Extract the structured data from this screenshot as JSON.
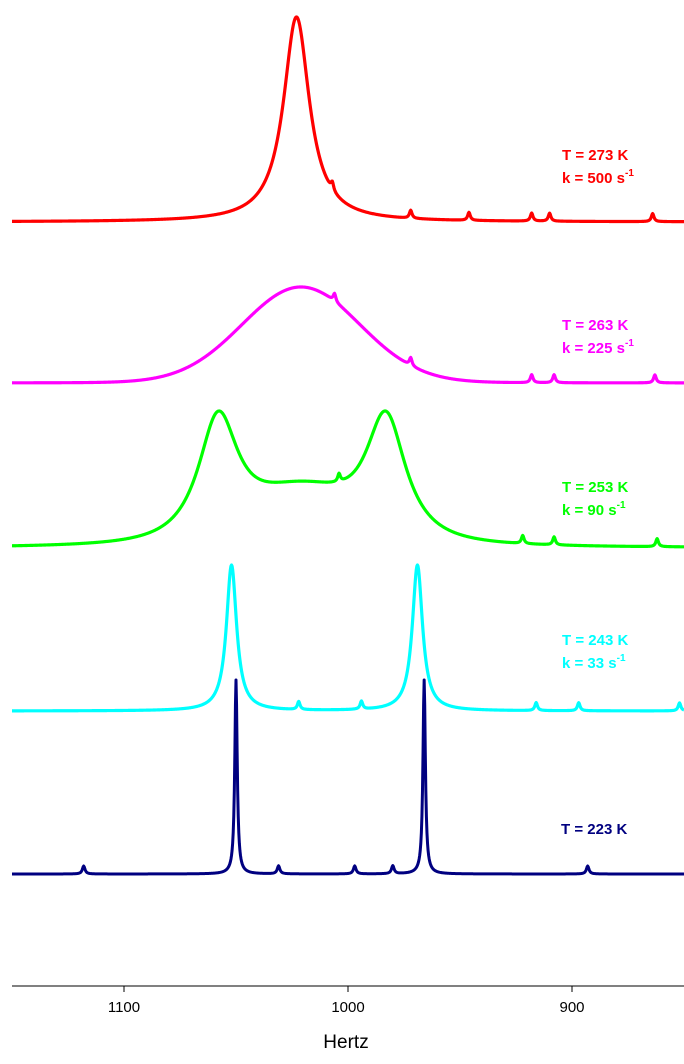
{
  "chart_data": {
    "type": "line",
    "title": "",
    "xlabel": "Hertz",
    "ylabel": "",
    "xlim": [
      1150,
      850
    ],
    "x_reversed": true,
    "x_ticks": [
      1100,
      1000,
      900
    ],
    "x_tick_labels": [
      "1100",
      "1000",
      "900"
    ],
    "grid": false,
    "series": [
      {
        "temperature_label": "T = 273 K",
        "rate_label": "k = 500 s",
        "rate_exponent": "-1",
        "color": "#ff0000",
        "regime": "coalesced-narrowing",
        "centers_hz": [
          1023
        ],
        "linewidth_hz": 14,
        "small_peaks_hz": [
          1007,
          972,
          946,
          918,
          910,
          864
        ]
      },
      {
        "temperature_label": "T = 263 K",
        "rate_label": "k = 225 s",
        "rate_exponent": "-1",
        "color": "#ff00ff",
        "regime": "coalesced-broad",
        "centers_hz": [
          1021
        ],
        "linewidth_hz": 48,
        "small_peaks_hz": [
          1006,
          972,
          918,
          908,
          863
        ]
      },
      {
        "temperature_label": "T = 253 K",
        "rate_label": "k = 90 s",
        "rate_exponent": "-1",
        "color": "#00ff00",
        "regime": "two-broad-peaks",
        "centers_hz": [
          1058,
          983
        ],
        "linewidth_hz": 14,
        "small_peaks_hz": [
          1004,
          922,
          908,
          862
        ]
      },
      {
        "temperature_label": "T = 243 K",
        "rate_label": "k = 33 s",
        "rate_exponent": "-1",
        "color": "#00ffff",
        "regime": "two-peaks",
        "centers_hz": [
          1052,
          969
        ],
        "linewidth_hz": 5.5,
        "small_peaks_hz": [
          1022,
          994,
          916,
          897,
          852
        ]
      },
      {
        "temperature_label": "T = 223 K",
        "rate_label": "",
        "rate_exponent": "",
        "color": "#000080",
        "regime": "slow-exchange",
        "centers_hz": [
          1050,
          966
        ],
        "linewidth_hz": 1.3,
        "small_peaks_hz": [
          1118,
          1031,
          997,
          980,
          893
        ]
      }
    ]
  }
}
